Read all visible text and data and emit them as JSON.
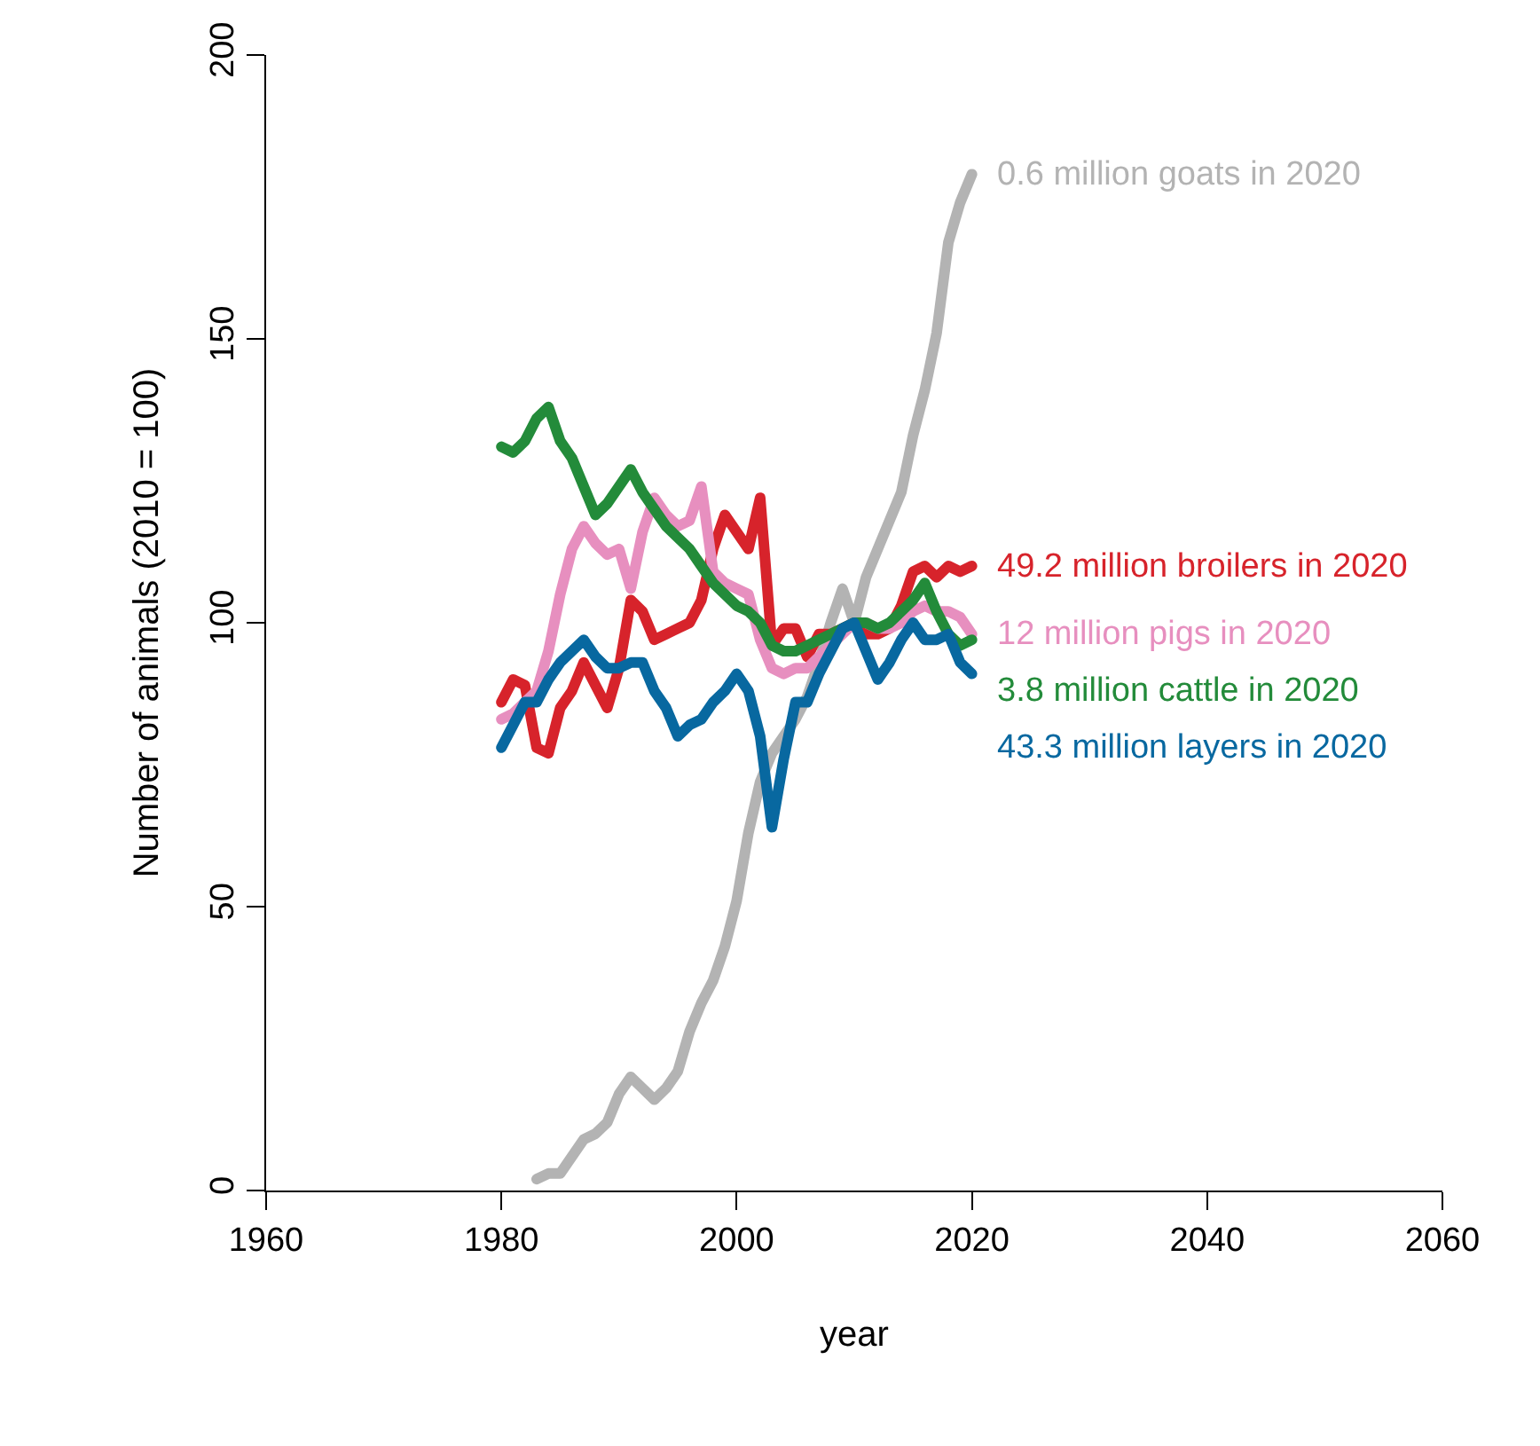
{
  "chart_data": {
    "type": "line",
    "xlabel": "year",
    "ylabel": "Number of animals (2010 = 100)",
    "xlim": [
      1960,
      2060
    ],
    "xticks": [
      1960,
      1980,
      2000,
      2020,
      2040,
      2060
    ],
    "ylim": [
      0,
      200
    ],
    "yticks": [
      0,
      50,
      100,
      150,
      200
    ],
    "legend": false,
    "marker": "none",
    "line_style": "solid",
    "series": [
      {
        "name": "0.6 million goats in 2020",
        "color": "#b3b3b3",
        "x": [
          1983,
          1984,
          1985,
          1986,
          1987,
          1988,
          1989,
          1990,
          1991,
          1992,
          1993,
          1994,
          1995,
          1996,
          1997,
          1998,
          1999,
          2000,
          2001,
          2002,
          2003,
          2004,
          2005,
          2006,
          2007,
          2008,
          2009,
          2010,
          2011,
          2012,
          2013,
          2014,
          2015,
          2016,
          2017,
          2018,
          2019,
          2020
        ],
        "values": [
          2,
          3,
          3,
          6,
          9,
          10,
          12,
          17,
          20,
          18,
          16,
          18,
          21,
          28,
          33,
          37,
          43,
          51,
          63,
          72,
          77,
          80,
          83,
          87,
          93,
          100,
          106,
          100,
          108,
          113,
          118,
          123,
          133,
          141,
          151,
          167,
          174,
          179
        ]
      },
      {
        "name": "49.2 million broilers in 2020",
        "color": "#d7232b",
        "values": [
          86,
          90,
          89,
          78,
          77,
          85,
          88,
          93,
          89,
          85,
          92,
          104,
          102,
          97,
          98,
          99,
          100,
          104,
          113,
          119,
          116,
          113,
          122,
          96,
          99,
          99,
          94,
          98,
          98,
          99,
          100,
          98,
          98,
          99,
          103,
          109,
          110,
          108,
          110,
          109,
          110
        ]
      },
      {
        "name": "12 million pigs in 2020",
        "color": "#e78fbf",
        "values": [
          83,
          84,
          86,
          88,
          95,
          105,
          113,
          117,
          114,
          112,
          113,
          106,
          116,
          122,
          119,
          117,
          118,
          124,
          109,
          107,
          106,
          105,
          97,
          92,
          91,
          92,
          92,
          94,
          96,
          98,
          100,
          100,
          99,
          99,
          100,
          102,
          103,
          102,
          102,
          101,
          98
        ]
      },
      {
        "name": "3.8 million cattle in 2020",
        "color": "#238b3a",
        "values": [
          131,
          130,
          132,
          136,
          138,
          132,
          129,
          124,
          119,
          121,
          124,
          127,
          123,
          120,
          117,
          115,
          113,
          110,
          107,
          105,
          103,
          102,
          100,
          96,
          95,
          95,
          96,
          97,
          98,
          99,
          100,
          100,
          99,
          100,
          102,
          104,
          107,
          102,
          98,
          96,
          97
        ]
      },
      {
        "name": "43.3 million layers in 2020",
        "color": "#0868a0",
        "values": [
          78,
          82,
          86,
          86,
          90,
          93,
          95,
          97,
          94,
          92,
          92,
          93,
          93,
          88,
          85,
          80,
          82,
          83,
          86,
          88,
          91,
          88,
          80,
          64,
          76,
          86,
          86,
          91,
          95,
          99,
          100,
          95,
          90,
          93,
          97,
          100,
          97,
          97,
          98,
          93,
          91
        ]
      }
    ],
    "x": [
      1980,
      1981,
      1982,
      1983,
      1984,
      1985,
      1986,
      1987,
      1988,
      1989,
      1990,
      1991,
      1992,
      1993,
      1994,
      1995,
      1996,
      1997,
      1998,
      1999,
      2000,
      2001,
      2002,
      2003,
      2004,
      2005,
      2006,
      2007,
      2008,
      2009,
      2010,
      2011,
      2012,
      2013,
      2014,
      2015,
      2016,
      2017,
      2018,
      2019,
      2020
    ]
  }
}
